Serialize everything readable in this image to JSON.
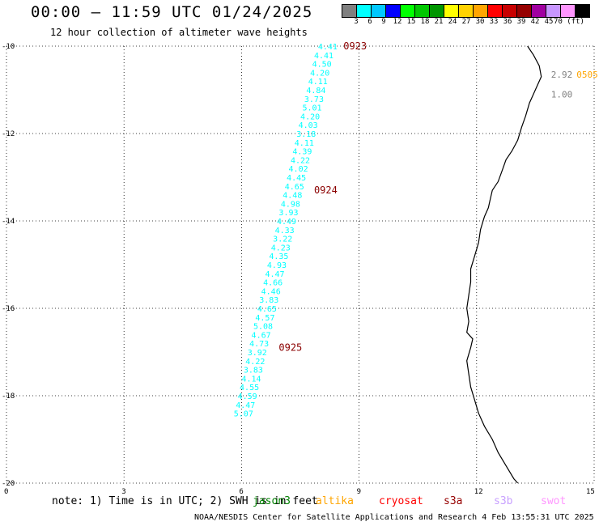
{
  "title": "00:00 – 11:59 UTC 01/24/2025",
  "subtitle": "12 hour collection of altimeter wave heights",
  "scale": {
    "colors": [
      "#808080",
      "#00ffff",
      "#00c8ff",
      "#0000ff",
      "#00ff00",
      "#00c800",
      "#009600",
      "#ffff00",
      "#ffd200",
      "#ffa500",
      "#ff0000",
      "#c80000",
      "#960000",
      "#a000a0",
      "#c896ff",
      "#ff96ff",
      "#000000"
    ],
    "labels": [
      "3",
      "6",
      "9",
      "12",
      "15",
      "18",
      "21",
      "24",
      "27",
      "30",
      "33",
      "36",
      "39",
      "42",
      "45",
      "70 (ft)"
    ]
  },
  "axes": {
    "y_labels": [
      "-10",
      "-12",
      "-14",
      "-16",
      "-18",
      "-20"
    ],
    "x_labels": [
      "0",
      "3",
      "6",
      "9",
      "12",
      "15"
    ]
  },
  "track": {
    "color": "#00ffff",
    "points": [
      {
        "lon": 8.2,
        "lat": -10.0,
        "v": "4.41"
      },
      {
        "lon": 8.1,
        "lat": -10.2,
        "v": "4.41"
      },
      {
        "lon": 8.05,
        "lat": -10.4,
        "v": "4.50"
      },
      {
        "lon": 8.0,
        "lat": -10.6,
        "v": "4.20"
      },
      {
        "lon": 7.95,
        "lat": -10.8,
        "v": "4.11"
      },
      {
        "lon": 7.9,
        "lat": -11.0,
        "v": "4.84"
      },
      {
        "lon": 7.85,
        "lat": -11.2,
        "v": "3.73"
      },
      {
        "lon": 7.8,
        "lat": -11.4,
        "v": "5.01"
      },
      {
        "lon": 7.75,
        "lat": -11.6,
        "v": "4.20"
      },
      {
        "lon": 7.7,
        "lat": -11.8,
        "v": "4.03"
      },
      {
        "lon": 7.65,
        "lat": -12.0,
        "v": "3.18"
      },
      {
        "lon": 7.6,
        "lat": -12.2,
        "v": "4.11"
      },
      {
        "lon": 7.55,
        "lat": -12.4,
        "v": "4.39"
      },
      {
        "lon": 7.5,
        "lat": -12.6,
        "v": "4.22"
      },
      {
        "lon": 7.45,
        "lat": -12.8,
        "v": "4.02"
      },
      {
        "lon": 7.4,
        "lat": -13.0,
        "v": "4.45"
      },
      {
        "lon": 7.35,
        "lat": -13.2,
        "v": "4.65"
      },
      {
        "lon": 7.3,
        "lat": -13.4,
        "v": "4.48"
      },
      {
        "lon": 7.25,
        "lat": -13.6,
        "v": "4.98"
      },
      {
        "lon": 7.2,
        "lat": -13.8,
        "v": "3.93"
      },
      {
        "lon": 7.15,
        "lat": -14.0,
        "v": "4.49"
      },
      {
        "lon": 7.1,
        "lat": -14.2,
        "v": "4.33"
      },
      {
        "lon": 7.05,
        "lat": -14.4,
        "v": "3.22"
      },
      {
        "lon": 7.0,
        "lat": -14.6,
        "v": "4.23"
      },
      {
        "lon": 6.95,
        "lat": -14.8,
        "v": "4.35"
      },
      {
        "lon": 6.9,
        "lat": -15.0,
        "v": "4.93"
      },
      {
        "lon": 6.85,
        "lat": -15.2,
        "v": "4.47"
      },
      {
        "lon": 6.8,
        "lat": -15.4,
        "v": "4.66"
      },
      {
        "lon": 6.75,
        "lat": -15.6,
        "v": "4.46"
      },
      {
        "lon": 6.7,
        "lat": -15.8,
        "v": "3.83"
      },
      {
        "lon": 6.65,
        "lat": -16.0,
        "v": "4.65"
      },
      {
        "lon": 6.6,
        "lat": -16.2,
        "v": "4.57"
      },
      {
        "lon": 6.55,
        "lat": -16.4,
        "v": "5.08"
      },
      {
        "lon": 6.5,
        "lat": -16.6,
        "v": "4.67"
      },
      {
        "lon": 6.45,
        "lat": -16.8,
        "v": "4.73"
      },
      {
        "lon": 6.4,
        "lat": -17.0,
        "v": "3.92"
      },
      {
        "lon": 6.35,
        "lat": -17.2,
        "v": "4.22"
      },
      {
        "lon": 6.3,
        "lat": -17.4,
        "v": "3.83"
      },
      {
        "lon": 6.25,
        "lat": -17.6,
        "v": "4.14"
      },
      {
        "lon": 6.2,
        "lat": -17.8,
        "v": "4.55"
      },
      {
        "lon": 6.15,
        "lat": -18.0,
        "v": "4.59"
      },
      {
        "lon": 6.1,
        "lat": -18.2,
        "v": "4.47"
      },
      {
        "lon": 6.05,
        "lat": -18.4,
        "v": "5.07"
      }
    ],
    "time_labels": [
      {
        "lon": 8.6,
        "lat": -10.0,
        "t": "0923"
      },
      {
        "lon": 7.85,
        "lat": -13.3,
        "v": "",
        "t": "0924"
      },
      {
        "lon": 6.95,
        "lat": -16.9,
        "t": "0925"
      }
    ]
  },
  "other_obs": [
    {
      "lon": 13.9,
      "lat": -10.65,
      "v": "2.92",
      "color": "#808080"
    },
    {
      "lon": 13.9,
      "lat": -11.1,
      "v": "1.00",
      "color": "#808080"
    },
    {
      "lon": 14.55,
      "lat": -10.65,
      "v": "0505",
      "color": "#ffa500"
    }
  ],
  "footer": {
    "note": "note: 1) Time is in UTC; 2) SWH is in feet",
    "satellites": [
      {
        "name": "jason3",
        "color": "#008000"
      },
      {
        "name": "altika",
        "color": "#ffa500"
      },
      {
        "name": "cryosat",
        "color": "#ff0000"
      },
      {
        "name": "s3a",
        "color": "#960000"
      },
      {
        "name": "s3b",
        "color": "#c8a0ff"
      },
      {
        "name": "swot",
        "color": "#ff96ff"
      }
    ],
    "credit": "NOAA/NESDIS Center for Satellite Applications and Research    4 Feb 13:55:31 UTC 2025"
  }
}
